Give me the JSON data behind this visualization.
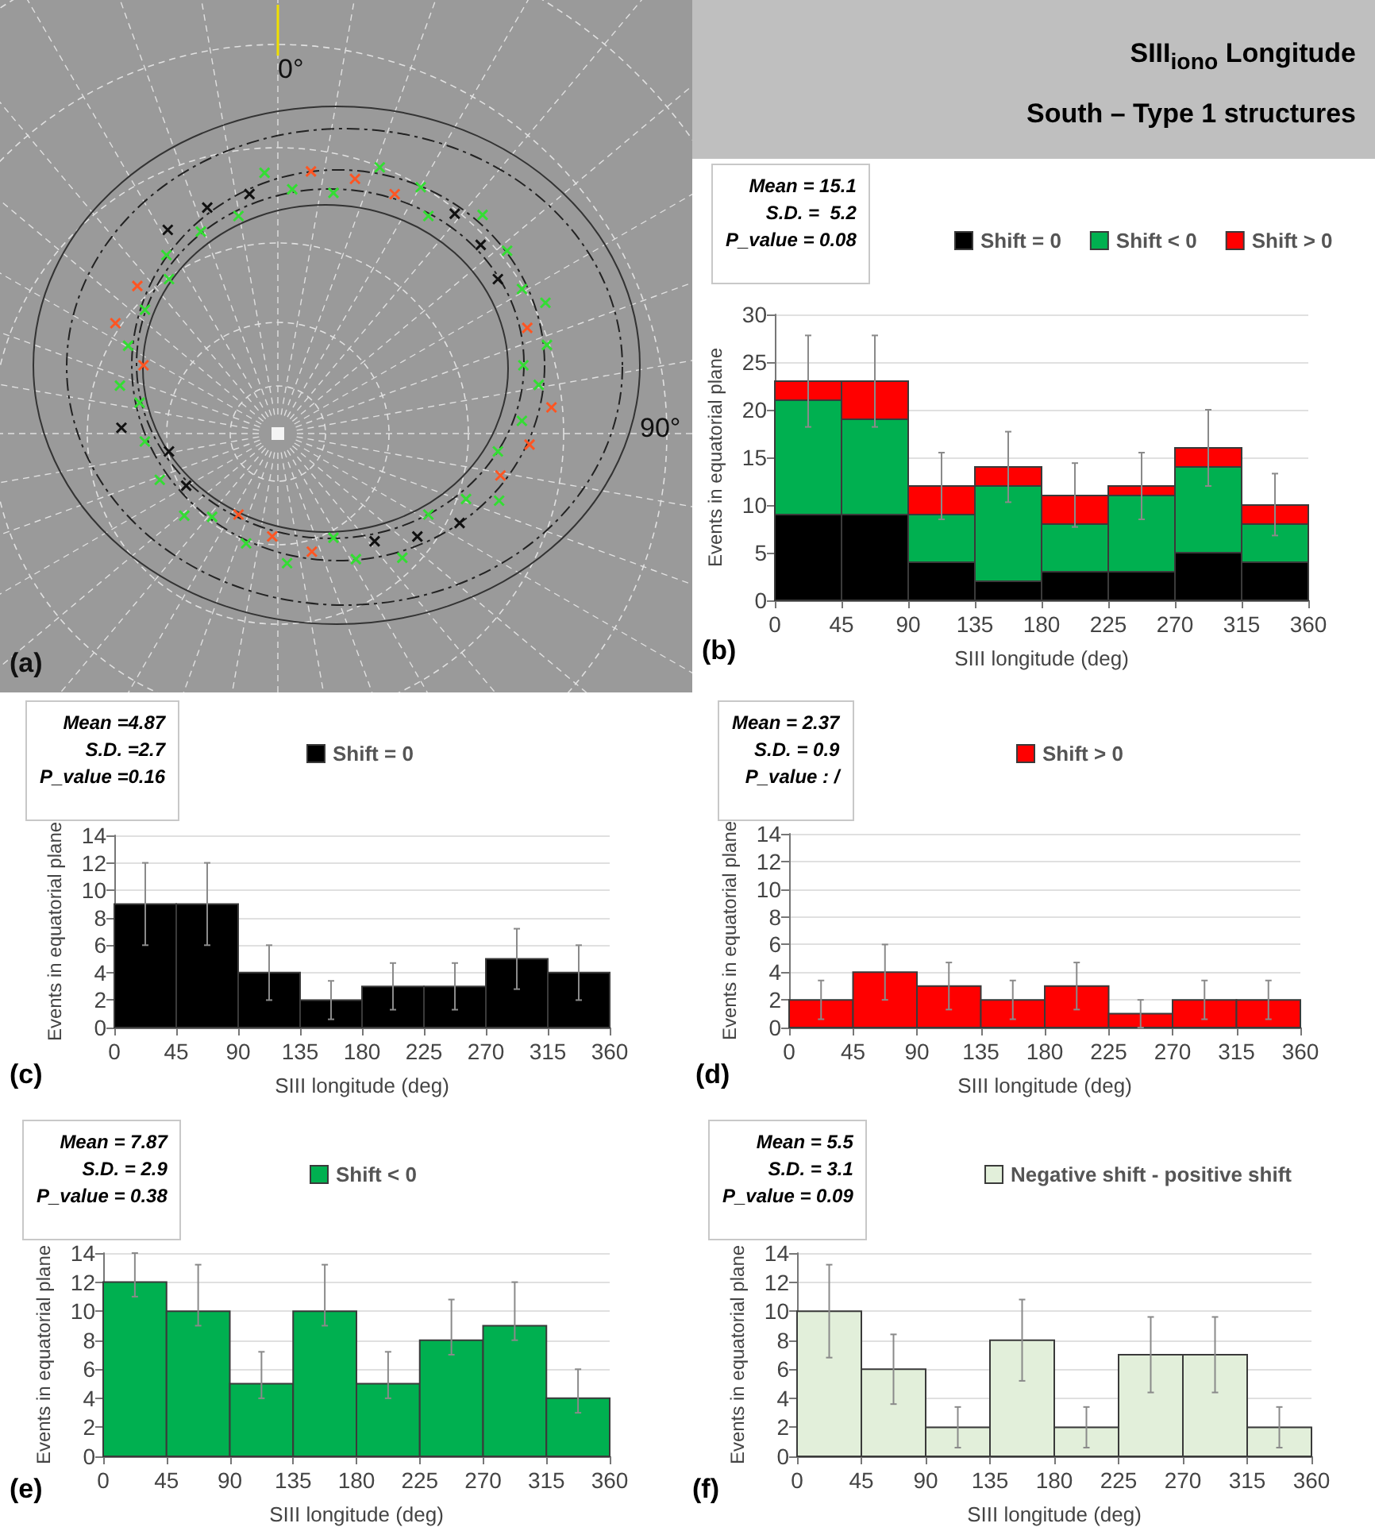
{
  "chart_data": [
    {
      "type": "other",
      "annotations": [
        "0°",
        "90°",
        "(a)"
      ]
    },
    {
      "type": "bar",
      "title": "SIII$_{iono}$ Longitude",
      "subtitle": "South – Type 1 structures",
      "xlabel": "SIII longitude (deg)",
      "ylabel": "Events in equatorial plane",
      "x": [
        22.5,
        67.5,
        112.5,
        157.5,
        202.5,
        247.5,
        292.5,
        337.5
      ],
      "stacked": true,
      "series": [
        {
          "name": "Shift = 0",
          "color": "#000000",
          "values": [
            9,
            9,
            4,
            2,
            3,
            3,
            5,
            4
          ]
        },
        {
          "name": "Shift < 0",
          "color": "#00b050",
          "values": [
            12,
            10,
            5,
            10,
            5,
            8,
            9,
            4
          ]
        },
        {
          "name": "Shift > 0",
          "color": "#ff0000",
          "values": [
            2,
            4,
            3,
            2,
            3,
            1,
            2,
            2
          ],
          "errors": [
            [
              18.2,
              27.8
            ],
            [
              18.2,
              27.8
            ],
            [
              8.5,
              15.5
            ],
            [
              10.3,
              17.7
            ],
            [
              7.7,
              14.4
            ],
            [
              8.5,
              15.5
            ],
            [
              12,
              20
            ],
            [
              6.8,
              13.3
            ]
          ]
        }
      ],
      "xlim": [
        0,
        360
      ],
      "xticks": [
        0,
        45,
        90,
        135,
        180,
        225,
        270,
        315,
        360
      ],
      "ylim": [
        0,
        30
      ],
      "yticks": [
        0,
        5,
        10,
        15,
        20,
        25,
        30
      ],
      "grid": "y",
      "legend": "top",
      "annotations": [
        "Mean = 15.1",
        "S.D. =  5.2",
        "P_value = 0.08",
        "(b)"
      ]
    },
    {
      "type": "histogram",
      "xlabel": "SIII longitude (deg)",
      "ylabel": "Events in equatorial plane",
      "bins": [
        0,
        45,
        90,
        135,
        180,
        225,
        270,
        315,
        360
      ],
      "series": [
        {
          "name": "Shift = 0",
          "color": "#000000",
          "values": [
            9,
            9,
            4,
            2,
            3,
            3,
            5,
            4
          ],
          "errors": [
            3,
            3,
            2,
            1.4,
            1.7,
            1.7,
            2.2,
            2
          ]
        }
      ],
      "xlim": [
        0,
        360
      ],
      "xticks": [
        0,
        45,
        90,
        135,
        180,
        225,
        270,
        315,
        360
      ],
      "ylim": [
        0,
        14
      ],
      "yticks": [
        0,
        2,
        4,
        6,
        8,
        10,
        12,
        14
      ],
      "grid": "y",
      "legend": "top",
      "annotations": [
        "Mean =4.87",
        "S.D. =2.7",
        "P_value =0.16",
        "(c)"
      ]
    },
    {
      "type": "histogram",
      "xlabel": "SIII longitude (deg)",
      "ylabel": "Events in equatorial plane",
      "bins": [
        0,
        45,
        90,
        135,
        180,
        225,
        270,
        315,
        360
      ],
      "series": [
        {
          "name": "Shift > 0",
          "color": "#ff0000",
          "values": [
            2,
            4,
            3,
            2,
            3,
            1,
            2,
            2
          ],
          "errors": [
            1.4,
            2,
            1.7,
            1.4,
            1.7,
            1,
            1.4,
            1.4
          ]
        }
      ],
      "xlim": [
        0,
        360
      ],
      "xticks": [
        0,
        45,
        90,
        135,
        180,
        225,
        270,
        315,
        360
      ],
      "ylim": [
        0,
        14
      ],
      "yticks": [
        0,
        2,
        4,
        6,
        8,
        10,
        12,
        14
      ],
      "grid": "y",
      "legend": "top",
      "annotations": [
        "Mean = 2.37",
        "S.D. = 0.9",
        "P_value : /",
        "(d)"
      ]
    },
    {
      "type": "histogram",
      "xlabel": "SIII longitude (deg)",
      "ylabel": "Events in equatorial plane",
      "bins": [
        0,
        45,
        90,
        135,
        180,
        225,
        270,
        315,
        360
      ],
      "series": [
        {
          "name": "Shift < 0",
          "color": "#00b050",
          "values": [
            12,
            10,
            5,
            10,
            5,
            8,
            9,
            4
          ],
          "errors": [
            [
              11,
              14
            ],
            [
              9,
              13.2
            ],
            [
              4,
              7.2
            ],
            [
              9,
              13.2
            ],
            [
              4,
              7.2
            ],
            [
              7,
              10.8
            ],
            [
              8,
              12
            ],
            [
              3,
              6
            ]
          ]
        }
      ],
      "xlim": [
        0,
        360
      ],
      "xticks": [
        0,
        45,
        90,
        135,
        180,
        225,
        270,
        315,
        360
      ],
      "ylim": [
        0,
        14
      ],
      "yticks": [
        0,
        2,
        4,
        6,
        8,
        10,
        12,
        14
      ],
      "grid": "y",
      "legend": "top",
      "annotations": [
        "Mean = 7.87",
        "S.D. = 2.9",
        "P_value = 0.38",
        "(e)"
      ]
    },
    {
      "type": "histogram",
      "xlabel": "SIII longitude (deg)",
      "ylabel": "Events in equatorial plane",
      "bins": [
        0,
        45,
        90,
        135,
        180,
        225,
        270,
        315,
        360
      ],
      "series": [
        {
          "name": "Negative shift - positive shift",
          "color": "#e2efda",
          "values": [
            10,
            6,
            2,
            8,
            2,
            7,
            7,
            2
          ],
          "errors": [
            3.2,
            2.4,
            1.4,
            2.8,
            1.4,
            2.6,
            2.6,
            1.4
          ]
        }
      ],
      "xlim": [
        0,
        360
      ],
      "xticks": [
        0,
        45,
        90,
        135,
        180,
        225,
        270,
        315,
        360
      ],
      "ylim": [
        0,
        14
      ],
      "yticks": [
        0,
        2,
        4,
        6,
        8,
        10,
        12,
        14
      ],
      "grid": "y",
      "legend": "top",
      "annotations": [
        "Mean = 5.5",
        "S.D. = 3.1",
        "P_value = 0.09",
        "(f)"
      ]
    }
  ]
}
